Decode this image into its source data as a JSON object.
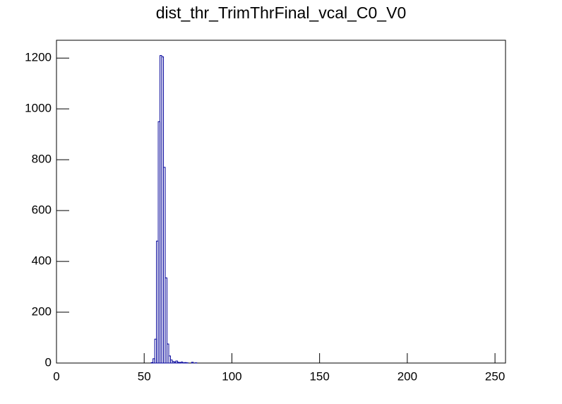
{
  "chart_data": {
    "type": "histogram",
    "title": "dist_thr_TrimThrFinal_vcal_C0_V0",
    "bins": [
      54,
      55,
      56,
      57,
      58,
      59,
      60,
      61,
      62,
      63,
      64,
      65,
      66,
      67,
      68,
      69,
      70,
      71,
      72,
      73,
      74,
      75,
      76,
      77,
      78,
      79,
      80
    ],
    "values": [
      2,
      17,
      94,
      480,
      950,
      1210,
      1205,
      770,
      335,
      75,
      28,
      12,
      6,
      4,
      8,
      3,
      2,
      4,
      1,
      2,
      1,
      0,
      0,
      3,
      0,
      1
    ],
    "color": "#000099",
    "xlim": [
      0,
      256
    ],
    "xticks": [
      0,
      50,
      100,
      150,
      200,
      250
    ],
    "ylim": [
      0,
      1270
    ],
    "yticks": [
      0,
      200,
      400,
      600,
      800,
      1000,
      1200
    ]
  }
}
